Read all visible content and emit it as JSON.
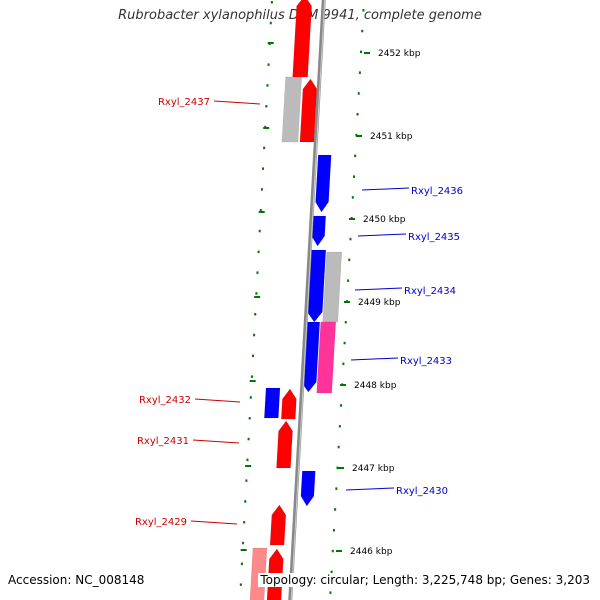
{
  "title": "Rubrobacter xylanophilus DSM 9941, complete genome",
  "footer": {
    "accession_label": "Accession: NC_008148",
    "topology_label": "Topology: circular; Length: 3,225,748 bp; Genes: 3,203"
  },
  "colors": {
    "forward_gene": "#ff0000",
    "reverse_gene": "#0000ff",
    "pseudo_gene": "#bbbbbb",
    "rna_gene": "#ff3399",
    "light_red_gene": "#ff8888",
    "tick": "#007700",
    "backbone": "#888888"
  },
  "scale_marks": [
    {
      "label": "2452 kbp"
    },
    {
      "label": "2451 kbp"
    },
    {
      "label": "2450 kbp"
    },
    {
      "label": "2449 kbp"
    },
    {
      "label": "2448 kbp"
    },
    {
      "label": "2447 kbp"
    },
    {
      "label": "2446 kbp"
    }
  ],
  "labels": [
    {
      "text": "Rxyl_2437",
      "strand": "forward"
    },
    {
      "text": "Rxyl_2436",
      "strand": "reverse"
    },
    {
      "text": "Rxyl_2435",
      "strand": "reverse"
    },
    {
      "text": "Rxyl_2434",
      "strand": "reverse"
    },
    {
      "text": "Rxyl_2433",
      "strand": "reverse"
    },
    {
      "text": "Rxyl_2432",
      "strand": "forward"
    },
    {
      "text": "Rxyl_2431",
      "strand": "forward"
    },
    {
      "text": "Rxyl_2430",
      "strand": "reverse"
    },
    {
      "text": "Rxyl_2429",
      "strand": "forward"
    }
  ]
}
